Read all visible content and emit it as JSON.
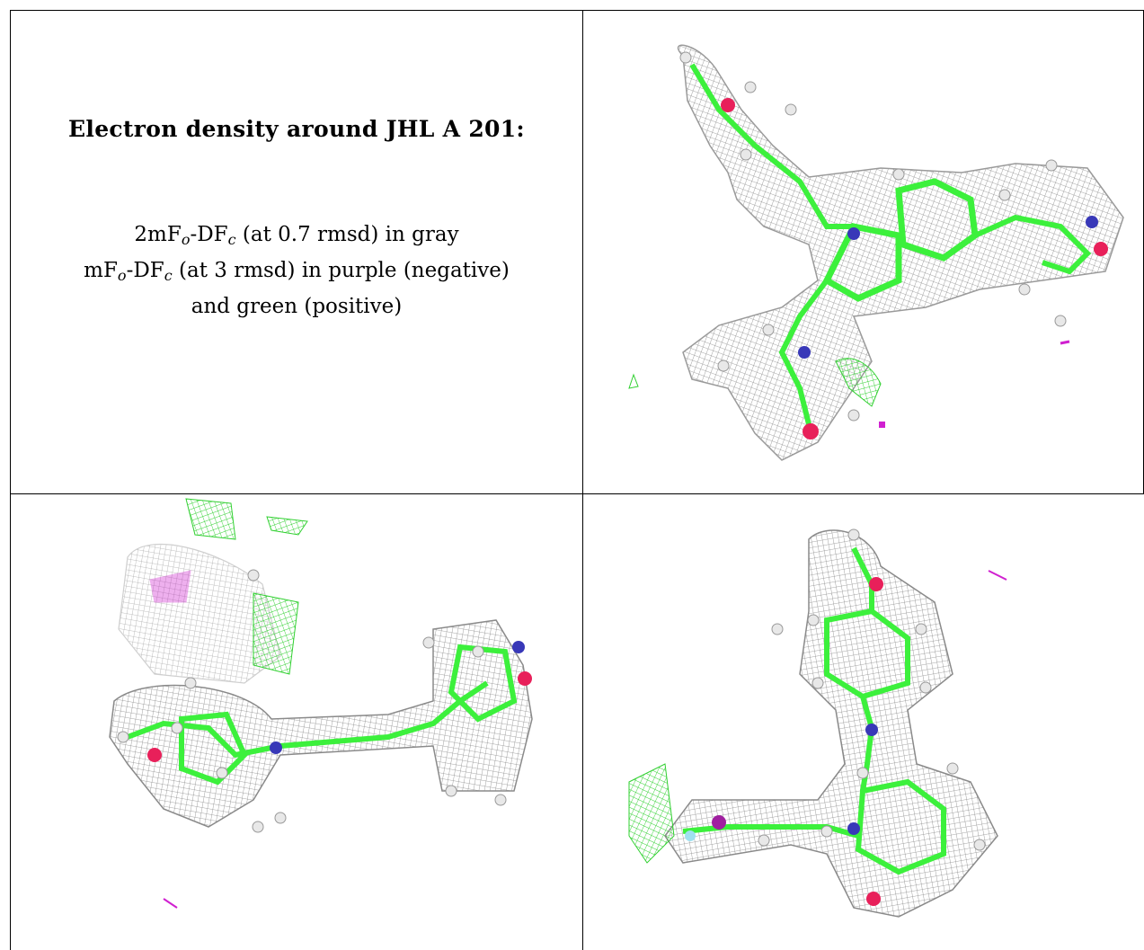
{
  "caption": {
    "title": "Electron density around JHL A 201:",
    "line1": {
      "a": "2mF",
      "b": "o",
      "c": "-DF",
      "d": "c",
      "e": " (at 0.7 rmsd) in gray"
    },
    "line2": {
      "a": "mF",
      "b": "o",
      "c": "-DF",
      "d": "c",
      "e": " (at 3 rmsd) in purple (negative)"
    },
    "line3": "and green (positive)"
  },
  "panels": [
    {
      "name": "view-top-right",
      "colors": {
        "mesh": "#808080",
        "carbon": "#3cf03c",
        "oxygen": "#e8205a",
        "nitrogen": "#3838b8",
        "hydrogen": "#e8e8e8",
        "negative": "#d020d0",
        "positive": "#30e030"
      }
    },
    {
      "name": "view-bottom-left"
    },
    {
      "name": "view-bottom-right"
    }
  ]
}
